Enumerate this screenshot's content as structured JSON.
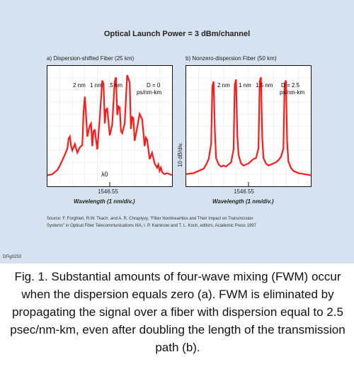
{
  "title": "Optical Launch Power = 3 dBm/channel",
  "figure_id": "DFig0253",
  "source_note_1": "Source: F. Forghieri, R.W. Tkach, and A. R. Chraplyvy, \"Fiber Nonlinearities and Their Impact on Transmission",
  "source_note_2": "Systems\" in Optical Fiber Telecommunications IIIA, I. P. Kaminow and T. L. Koch, editors, Academic Press 1997",
  "caption": "Fig. 1. Substantial amounts of four-wave mixing (FWM) occur when the dispersion equals zero (a). FWM is eliminated by propagating the signal over a fiber with dispersion equal to 2.5 psec/nm-km, even after doubling the length of the transmission path (b).",
  "colors": {
    "trace": "#ff1a1a",
    "panel": "#d6e2ef"
  },
  "chart_data": [
    {
      "type": "line",
      "title": "a) Dispersion-shifted Fiber (25 km)",
      "xlabel": "Wavelength (1 nm/div.)",
      "x_tick_label": "1546.55",
      "ylabel": "",
      "annotations": [
        "2 nm",
        "1 nm",
        ".5 nm",
        "D = 0",
        "ps/nm-km",
        "λ0"
      ],
      "series": [
        {
          "x": [
            0,
            4,
            8,
            10,
            12,
            14,
            16,
            17,
            18,
            19,
            20,
            22,
            24,
            26,
            28,
            29,
            30,
            31,
            32,
            34,
            35,
            36,
            37,
            38,
            40,
            42,
            44,
            45,
            46,
            47,
            48,
            50,
            52,
            54,
            55,
            56,
            57,
            58,
            59,
            60,
            62,
            64,
            66,
            67,
            68,
            69,
            70,
            72,
            74,
            76,
            78,
            79,
            80,
            81,
            82,
            84,
            86,
            88,
            89,
            90,
            91,
            92,
            94,
            96,
            100
          ],
          "y": [
            0.5,
            0.6,
            1.0,
            1.4,
            1.9,
            2.4,
            3.0,
            3.9,
            4.1,
            3.2,
            2.8,
            3.4,
            2.6,
            3.1,
            3.3,
            6.4,
            7.8,
            6.0,
            4.1,
            5.1,
            5.3,
            3.2,
            4.6,
            4.7,
            2.9,
            5.8,
            9.3,
            9.0,
            5.3,
            6.6,
            6.7,
            4.2,
            5.2,
            9.2,
            9.6,
            6.1,
            6.9,
            6.8,
            4.6,
            4.4,
            5.3,
            9.8,
            9.1,
            4.8,
            5.9,
            5.8,
            3.7,
            4.9,
            6.2,
            5.7,
            3.2,
            4.0,
            3.8,
            2.9,
            2.0,
            2.6,
            1.6,
            1.2,
            1.5,
            0.9,
            1.2,
            0.8,
            0.6,
            0.7,
            0.5
          ]
        }
      ]
    },
    {
      "type": "line",
      "title": "b) Nonzero-dispersion Fiber (50 km)",
      "xlabel": "Wavelength (1 nm/div.)",
      "x_tick_label": "1546.55",
      "ylabel": "10 dB/div.",
      "annotations": [
        "2 nm",
        "1 nm",
        "1.5 nm",
        "D = 2.5",
        "ps/nm-km"
      ],
      "series": [
        {
          "x": [
            0,
            6,
            10,
            14,
            16,
            18,
            20,
            21,
            22,
            23,
            24,
            26,
            28,
            30,
            32,
            34,
            36,
            38,
            39,
            40,
            41,
            42,
            44,
            46,
            48,
            50,
            52,
            54,
            56,
            58,
            59,
            60,
            61,
            62,
            64,
            66,
            68,
            70,
            72,
            74,
            76,
            78,
            79,
            80,
            81,
            82,
            84,
            86,
            90,
            95,
            100
          ],
          "y": [
            0.6,
            0.7,
            0.9,
            1.1,
            1.5,
            2.0,
            3.4,
            8.8,
            9.2,
            4.6,
            2.1,
            1.5,
            1.3,
            1.4,
            1.3,
            1.5,
            1.7,
            2.9,
            8.9,
            9.4,
            4.2,
            2.4,
            1.6,
            1.4,
            1.5,
            1.6,
            1.8,
            2.0,
            2.1,
            3.0,
            9.2,
            9.6,
            4.0,
            2.1,
            1.6,
            1.4,
            1.5,
            1.6,
            1.7,
            1.9,
            2.2,
            3.0,
            9.0,
            9.3,
            3.5,
            1.8,
            1.2,
            0.9,
            0.7,
            0.6,
            0.5
          ]
        }
      ]
    }
  ]
}
